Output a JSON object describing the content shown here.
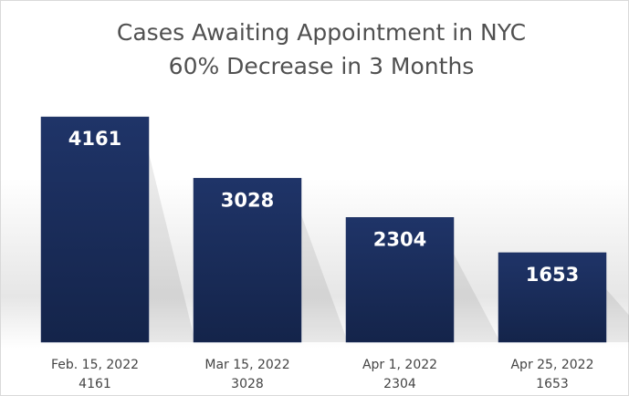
{
  "chart_data": {
    "type": "bar",
    "title": "Cases Awaiting Appointment in NYC",
    "subtitle": "60% Decrease in 3 Months",
    "categories": [
      "Feb. 15, 2022",
      "Mar 15, 2022",
      "Apr 1, 2022",
      "Apr 25, 2022"
    ],
    "values": [
      4161,
      3028,
      2304,
      1653
    ],
    "color": "#1c2f5e",
    "ylim": [
      0,
      4500
    ]
  }
}
